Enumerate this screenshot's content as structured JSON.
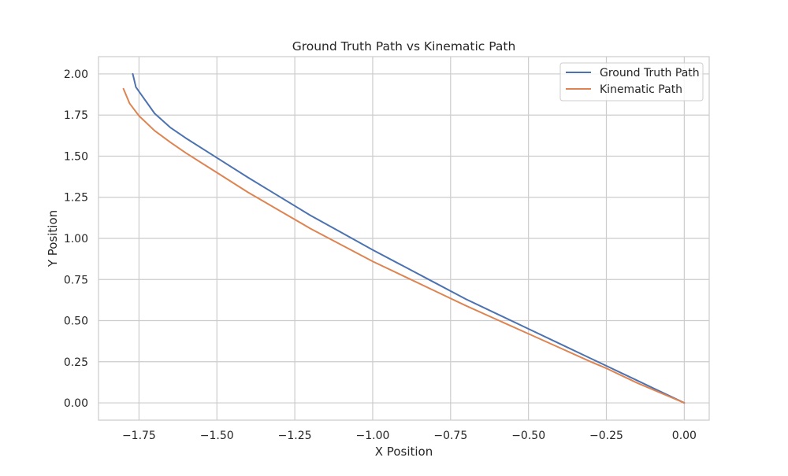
{
  "chart_data": {
    "type": "line",
    "title": "Ground Truth Path vs Kinematic Path",
    "xlabel": "X Position",
    "ylabel": "Y Position",
    "xlim": [
      -1.88,
      0.08
    ],
    "ylim": [
      -0.105,
      2.105
    ],
    "xticks": [
      -1.75,
      -1.5,
      -1.25,
      -1.0,
      -0.75,
      -0.5,
      -0.25,
      0.0
    ],
    "xtick_labels": [
      "−1.75",
      "−1.50",
      "−1.25",
      "−1.00",
      "−0.75",
      "−0.50",
      "−0.25",
      "0.00"
    ],
    "yticks": [
      0.0,
      0.25,
      0.5,
      0.75,
      1.0,
      1.25,
      1.5,
      1.75,
      2.0
    ],
    "ytick_labels": [
      "0.00",
      "0.25",
      "0.50",
      "0.75",
      "1.00",
      "1.25",
      "1.50",
      "1.75",
      "2.00"
    ],
    "grid": true,
    "legend_position": "top-right",
    "series": [
      {
        "name": "Ground Truth Path",
        "color": "#4c72b0",
        "x": [
          0.0,
          -0.05,
          -0.1,
          -0.15,
          -0.2,
          -0.25,
          -0.3,
          -0.4,
          -0.5,
          -0.6,
          -0.7,
          -0.8,
          -0.9,
          -1.0,
          -1.1,
          -1.2,
          -1.3,
          -1.4,
          -1.5,
          -1.6,
          -1.65,
          -1.7,
          -1.73,
          -1.76,
          -1.77
        ],
        "y": [
          0.0,
          0.045,
          0.09,
          0.135,
          0.18,
          0.225,
          0.27,
          0.36,
          0.45,
          0.54,
          0.63,
          0.73,
          0.83,
          0.93,
          1.035,
          1.14,
          1.255,
          1.37,
          1.49,
          1.61,
          1.675,
          1.76,
          1.84,
          1.92,
          2.0
        ]
      },
      {
        "name": "Kinematic Path",
        "color": "#dd8452",
        "x": [
          0.0,
          -0.05,
          -0.1,
          -0.15,
          -0.2,
          -0.25,
          -0.3,
          -0.4,
          -0.5,
          -0.6,
          -0.7,
          -0.8,
          -0.9,
          -1.0,
          -1.1,
          -1.2,
          -1.3,
          -1.4,
          -1.5,
          -1.6,
          -1.65,
          -1.7,
          -1.75,
          -1.78,
          -1.8
        ],
        "y": [
          0.0,
          0.04,
          0.08,
          0.12,
          0.165,
          0.21,
          0.25,
          0.335,
          0.42,
          0.505,
          0.59,
          0.68,
          0.77,
          0.86,
          0.96,
          1.06,
          1.17,
          1.28,
          1.4,
          1.52,
          1.585,
          1.655,
          1.745,
          1.82,
          1.91
        ]
      }
    ]
  }
}
